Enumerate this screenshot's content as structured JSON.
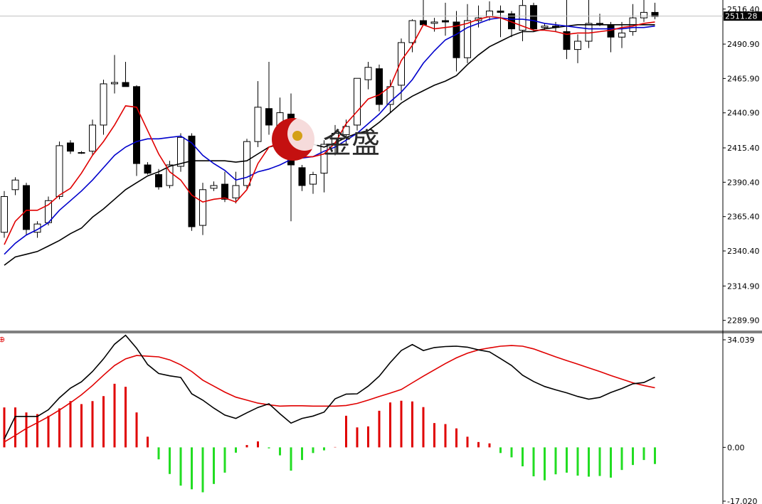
{
  "watermark": {
    "text": "金盛"
  },
  "price_panel": {
    "y_ticks": [
      "2516.40",
      "2490.90",
      "2465.90",
      "2440.90",
      "2415.40",
      "2390.40",
      "2365.40",
      "2340.40",
      "2314.90",
      "2289.90"
    ],
    "current_price_label": "2511.28"
  },
  "macd_panel": {
    "y_ticks": [
      "34.039",
      "0.00",
      "-17.020"
    ],
    "marker": "⊕"
  },
  "colors": {
    "background": "#ffffff",
    "up_candle_fill": "#ffffff",
    "down_candle_fill": "#000000",
    "ma_fast": "#e00000",
    "ma_mid": "#0000cc",
    "ma_slow": "#000000",
    "macd_line": "#000000",
    "signal_line": "#e00000",
    "hist_positive": "#e00000",
    "hist_negative": "#22dd22",
    "price_tag_bg": "#000000"
  },
  "chart_data": [
    {
      "type": "candlestick",
      "ylim": [
        2283,
        2523
      ],
      "current_price": 2511.28,
      "ohlc": [
        [
          2354,
          2384,
          2350,
          2380
        ],
        [
          2385,
          2394,
          2381,
          2392
        ],
        [
          2388,
          2390,
          2352,
          2356
        ],
        [
          2354,
          2362,
          2350,
          2360
        ],
        [
          2361,
          2380,
          2359,
          2377
        ],
        [
          2380,
          2420,
          2378,
          2417
        ],
        [
          2419,
          2421,
          2411,
          2413
        ],
        [
          2412,
          2413,
          2411,
          2412
        ],
        [
          2413,
          2436,
          2410,
          2432
        ],
        [
          2432,
          2465,
          2425,
          2462
        ],
        [
          2462,
          2483,
          2455,
          2463
        ],
        [
          2463,
          2478,
          2460,
          2460
        ],
        [
          2460,
          2461,
          2395,
          2404
        ],
        [
          2403,
          2405,
          2396,
          2397
        ],
        [
          2396,
          2400,
          2385,
          2387
        ],
        [
          2388,
          2406,
          2386,
          2403
        ],
        [
          2402,
          2426,
          2398,
          2423
        ],
        [
          2424,
          2426,
          2355,
          2358
        ],
        [
          2359,
          2390,
          2352,
          2385
        ],
        [
          2386,
          2391,
          2384,
          2388
        ],
        [
          2389,
          2398,
          2376,
          2378
        ],
        [
          2379,
          2398,
          2375,
          2388
        ],
        [
          2388,
          2422,
          2385,
          2420
        ],
        [
          2420,
          2464,
          2416,
          2445
        ],
        [
          2444,
          2478,
          2425,
          2432
        ],
        [
          2431,
          2452,
          2410,
          2441
        ],
        [
          2440,
          2455,
          2362,
          2403
        ],
        [
          2401,
          2403,
          2384,
          2388
        ],
        [
          2389,
          2398,
          2382,
          2396
        ],
        [
          2397,
          2421,
          2383,
          2418
        ],
        [
          2418,
          2432,
          2410,
          2426
        ],
        [
          2425,
          2436,
          2418,
          2431
        ],
        [
          2432,
          2465,
          2428,
          2466
        ],
        [
          2465,
          2478,
          2458,
          2474
        ],
        [
          2473,
          2476,
          2442,
          2447
        ],
        [
          2447,
          2465,
          2441,
          2460
        ],
        [
          2461,
          2495,
          2450,
          2492
        ],
        [
          2492,
          2509,
          2485,
          2508
        ],
        [
          2508,
          2532,
          2505,
          2505
        ],
        [
          2506,
          2510,
          2500,
          2507
        ],
        [
          2508,
          2521,
          2497,
          2507
        ],
        [
          2507,
          2515,
          2471,
          2481
        ],
        [
          2481,
          2520,
          2477,
          2508
        ],
        [
          2508,
          2519,
          2503,
          2510
        ],
        [
          2511,
          2522,
          2508,
          2515
        ],
        [
          2515,
          2519,
          2496,
          2514
        ],
        [
          2513,
          2515,
          2496,
          2502
        ],
        [
          2501,
          2528,
          2493,
          2519
        ],
        [
          2519,
          2521,
          2500,
          2502
        ],
        [
          2503,
          2506,
          2501,
          2504
        ],
        [
          2504,
          2507,
          2500,
          2503
        ],
        [
          2500,
          2526,
          2480,
          2487
        ],
        [
          2487,
          2498,
          2477,
          2493
        ],
        [
          2493,
          2535,
          2488,
          2506
        ],
        [
          2506,
          2513,
          2504,
          2505
        ],
        [
          2505,
          2507,
          2485,
          2496
        ],
        [
          2496,
          2507,
          2488,
          2499
        ],
        [
          2500,
          2520,
          2497,
          2510
        ],
        [
          2510,
          2530,
          2507,
          2514
        ],
        [
          2514,
          2521,
          2509,
          2511
        ]
      ],
      "ma_fast": [
        2345,
        2362,
        2370,
        2370,
        2374,
        2381,
        2386,
        2397,
        2410,
        2420,
        2432,
        2446,
        2445,
        2428,
        2411,
        2398,
        2392,
        2381,
        2376,
        2378,
        2379,
        2376,
        2385,
        2404,
        2416,
        2419,
        2418,
        2409,
        2409,
        2411,
        2419,
        2433,
        2442,
        2451,
        2454,
        2460,
        2479,
        2490,
        2505,
        2502,
        2503,
        2504,
        2506,
        2509,
        2511,
        2510,
        2507,
        2504,
        2501,
        2501,
        2500,
        2498,
        2499,
        2499,
        2500,
        2501,
        2503,
        2504,
        2506,
        2507
      ],
      "ma_mid": [
        2338,
        2346,
        2352,
        2356,
        2361,
        2370,
        2377,
        2384,
        2392,
        2401,
        2410,
        2416,
        2420,
        2422,
        2422,
        2423,
        2424,
        2419,
        2410,
        2404,
        2399,
        2392,
        2394,
        2398,
        2400,
        2403,
        2407,
        2408,
        2409,
        2413,
        2416,
        2421,
        2426,
        2433,
        2440,
        2449,
        2456,
        2465,
        2477,
        2486,
        2494,
        2498,
        2503,
        2506,
        2509,
        2510,
        2509,
        2509,
        2508,
        2506,
        2505,
        2504,
        2503,
        2502,
        2502,
        2502,
        2502,
        2503,
        2503,
        2504
      ],
      "ma_slow": [
        2330,
        2336,
        2338,
        2340,
        2344,
        2348,
        2353,
        2357,
        2365,
        2371,
        2378,
        2385,
        2390,
        2395,
        2398,
        2402,
        2404,
        2406,
        2406,
        2406,
        2406,
        2405,
        2406,
        2411,
        2416,
        2418,
        2420,
        2420,
        2418,
        2416,
        2419,
        2423,
        2426,
        2428,
        2434,
        2441,
        2448,
        2453,
        2457,
        2461,
        2464,
        2468,
        2476,
        2483,
        2489,
        2493,
        2497,
        2500,
        2500,
        2502,
        2503,
        2504,
        2505,
        2505,
        2505,
        2505,
        2505,
        2505,
        2505,
        2505
      ]
    },
    {
      "type": "bar",
      "ylim": [
        -17.02,
        34.039
      ],
      "macd": [
        2.5,
        9.3,
        9.3,
        9.3,
        11.3,
        14.9,
        17.8,
        19.7,
        22.8,
        26.6,
        31.0,
        33.7,
        29.8,
        24.9,
        22.2,
        21.5,
        21.0,
        16.1,
        14.2,
        11.8,
        9.7,
        8.7,
        10.4,
        12.0,
        13.1,
        10.1,
        7.3,
        8.7,
        9.4,
        10.6,
        14.6,
        16.0,
        16.1,
        18.4,
        21.4,
        25.5,
        29.1,
        30.9,
        29.1,
        30.0,
        30.3,
        30.4,
        30.1,
        29.3,
        28.7,
        26.7,
        24.6,
        21.7,
        19.8,
        18.3,
        17.3,
        16.4,
        15.3,
        14.5,
        15.0,
        16.5,
        17.7,
        19.1,
        19.5,
        21.1
      ],
      "signal": [
        1.6,
        3.6,
        5.7,
        7.4,
        9.2,
        11.2,
        13.4,
        15.8,
        18.6,
        21.7,
        24.6,
        26.6,
        27.6,
        27.4,
        27.2,
        26.3,
        24.8,
        22.8,
        20.2,
        18.4,
        16.6,
        15.1,
        14.2,
        13.3,
        12.8,
        12.4,
        12.5,
        12.5,
        12.4,
        12.4,
        12.4,
        12.6,
        13.2,
        14.2,
        15.3,
        16.3,
        17.4,
        19.4,
        21.4,
        23.3,
        25.2,
        26.9,
        28.3,
        29.3,
        29.9,
        30.4,
        30.6,
        30.4,
        29.6,
        28.4,
        27.2,
        26.1,
        25.0,
        23.9,
        22.8,
        21.6,
        20.5,
        19.4,
        18.6,
        17.9
      ],
      "histogram": [
        12.0,
        12.0,
        10.5,
        10.0,
        9.5,
        11.7,
        13.9,
        13.0,
        13.9,
        15.4,
        19.1,
        18.2,
        10.5,
        3.2,
        -3.6,
        -8.0,
        -11.5,
        -12.6,
        -13.5,
        -11.0,
        -7.6,
        -1.6,
        0.7,
        1.8,
        -0.3,
        -2.4,
        -7.0,
        -3.8,
        -1.7,
        -0.9,
        0.1,
        9.5,
        6.0,
        6.3,
        11.0,
        13.5,
        14.0,
        13.8,
        12.1,
        7.3,
        7.0,
        5.7,
        3.2,
        1.6,
        1.2,
        -1.7,
        -3.0,
        -5.7,
        -8.7,
        -9.9,
        -8.1,
        -7.6,
        -8.5,
        -8.8,
        -8.6,
        -9.1,
        -6.8,
        -5.3,
        -3.8,
        -5.0
      ]
    }
  ]
}
